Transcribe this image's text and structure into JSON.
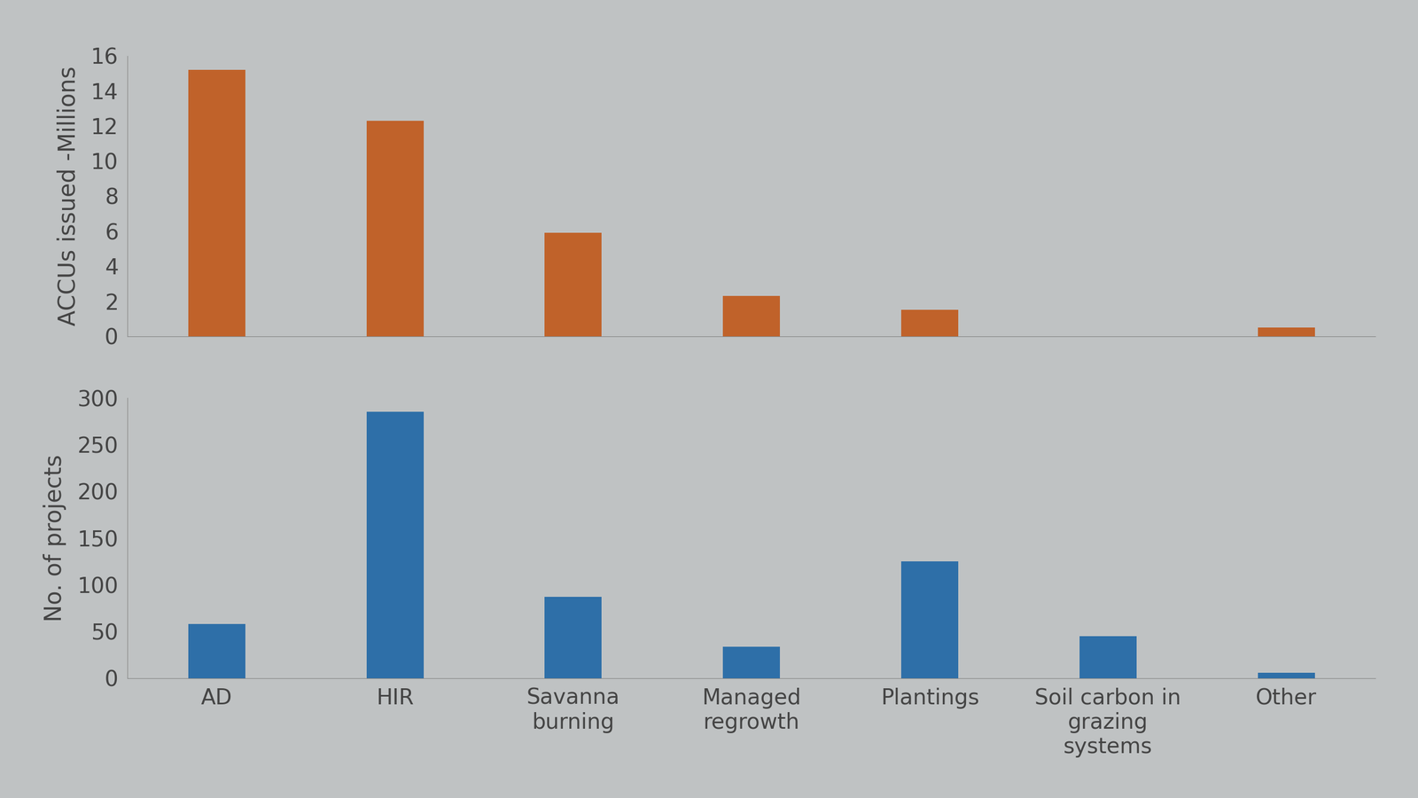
{
  "chart_data": [
    {
      "type": "bar",
      "categories": [
        "AD",
        "HIR",
        "Savanna burning",
        "Managed regrowth",
        "Plantings",
        "Soil carbon in grazing systems",
        "Other"
      ],
      "values": [
        15.2,
        12.3,
        5.9,
        2.3,
        1.5,
        0,
        0.5
      ],
      "color": "#c0622a",
      "y_label": "ACCUs issued -Millions",
      "ylim": [
        0,
        16
      ],
      "yticks": [
        0,
        2,
        4,
        6,
        8,
        10,
        12,
        14,
        16
      ],
      "tick_labels": "y"
    },
    {
      "type": "bar",
      "categories": [
        "AD",
        "HIR",
        "Savanna burning",
        "Managed regrowth",
        "Plantings",
        "Soil carbon in grazing systems",
        "Other"
      ],
      "values": [
        58,
        285,
        87,
        34,
        125,
        45,
        6
      ],
      "color": "#2e6fa8",
      "y_label": "No. of projects",
      "ylim": [
        0,
        300
      ],
      "yticks": [
        0,
        50,
        100,
        150,
        200,
        250,
        300
      ]
    }
  ]
}
